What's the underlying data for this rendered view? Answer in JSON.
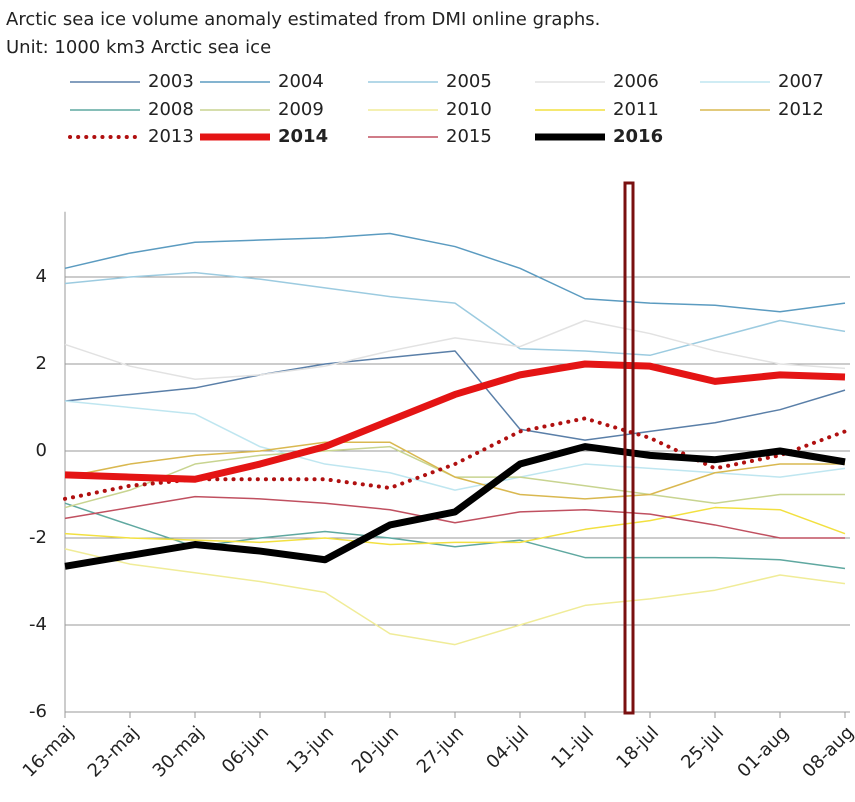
{
  "chart_data": {
    "type": "line",
    "title": "Arctic sea ice volume anomaly estimated from DMI online graphs.",
    "subtitle": "Unit: 1000 km3 Arctic sea ice",
    "categories": [
      "16-maj",
      "23-maj",
      "30-maj",
      "06-jun",
      "13-jun",
      "20-jun",
      "27-jun",
      "04-jul",
      "11-jul",
      "18-jul",
      "25-jul",
      "01-aug",
      "08-aug"
    ],
    "ylim": [
      -6,
      5.5
    ],
    "yticks": [
      -6,
      -4,
      -2,
      0,
      2,
      4
    ],
    "grid": true,
    "series": [
      {
        "name": "2003",
        "color": "#5a7fa8",
        "width": 1.5,
        "values": [
          1.15,
          1.3,
          1.45,
          1.75,
          2.0,
          2.15,
          2.3,
          0.5,
          0.25,
          0.45,
          0.65,
          0.95,
          1.4
        ]
      },
      {
        "name": "2004",
        "color": "#5b9bc0",
        "width": 1.5,
        "values": [
          4.2,
          4.55,
          4.8,
          4.85,
          4.9,
          5.0,
          4.7,
          4.2,
          3.5,
          3.4,
          3.35,
          3.2,
          3.4
        ]
      },
      {
        "name": "2005",
        "color": "#9ccbe0",
        "width": 1.5,
        "values": [
          3.85,
          4.0,
          4.1,
          3.95,
          3.75,
          3.55,
          3.4,
          2.35,
          2.3,
          2.2,
          2.6,
          3.0,
          2.75
        ]
      },
      {
        "name": "2006",
        "color": "#e2e2e2",
        "width": 1.5,
        "values": [
          2.45,
          1.95,
          1.65,
          1.75,
          1.95,
          2.3,
          2.6,
          2.4,
          3.0,
          2.7,
          2.3,
          2.0,
          1.9
        ]
      },
      {
        "name": "2007",
        "color": "#bfe6f0",
        "width": 1.5,
        "values": [
          1.15,
          1.0,
          0.85,
          0.1,
          -0.3,
          -0.5,
          -0.9,
          -0.6,
          -0.3,
          -0.4,
          -0.5,
          -0.6,
          -0.4
        ]
      },
      {
        "name": "2008",
        "color": "#5fa8a0",
        "width": 1.5,
        "values": [
          -1.2,
          -1.7,
          -2.2,
          -2.0,
          -1.85,
          -2.0,
          -2.2,
          -2.05,
          -2.45,
          -2.45,
          -2.45,
          -2.5,
          -2.7
        ]
      },
      {
        "name": "2009",
        "color": "#c8d490",
        "width": 1.5,
        "values": [
          -1.3,
          -0.9,
          -0.3,
          -0.1,
          0.0,
          0.1,
          -0.6,
          -0.6,
          -0.8,
          -1.0,
          -1.2,
          -1.0,
          -1.0
        ]
      },
      {
        "name": "2010",
        "color": "#f0ec98",
        "width": 1.5,
        "values": [
          -2.25,
          -2.6,
          -2.8,
          -3.0,
          -3.25,
          -4.2,
          -4.45,
          -4.0,
          -3.55,
          -3.4,
          -3.2,
          -2.85,
          -3.05
        ]
      },
      {
        "name": "2011",
        "color": "#f2e040",
        "width": 1.5,
        "values": [
          -1.9,
          -2.0,
          -2.05,
          -2.1,
          -2.0,
          -2.15,
          -2.1,
          -2.1,
          -1.8,
          -1.6,
          -1.3,
          -1.35,
          -1.9
        ]
      },
      {
        "name": "2012",
        "color": "#d9b850",
        "width": 1.5,
        "values": [
          -0.6,
          -0.3,
          -0.1,
          0.0,
          0.2,
          0.2,
          -0.6,
          -1.0,
          -1.1,
          -1.0,
          -0.5,
          -0.3,
          -0.3
        ]
      },
      {
        "name": "2013",
        "color": "#b01010",
        "width": 4,
        "dash": "dotted",
        "values": [
          -1.1,
          -0.8,
          -0.65,
          -0.65,
          -0.65,
          -0.85,
          -0.3,
          0.45,
          0.75,
          0.3,
          -0.4,
          -0.1,
          0.45
        ]
      },
      {
        "name": "2014",
        "color": "#e41414",
        "width": 7,
        "values": [
          -0.55,
          -0.6,
          -0.65,
          -0.3,
          0.1,
          0.7,
          1.3,
          1.75,
          2.0,
          1.95,
          1.6,
          1.75,
          1.7
        ]
      },
      {
        "name": "2015",
        "color": "#c05060",
        "width": 1.5,
        "values": [
          -1.55,
          -1.3,
          -1.05,
          -1.1,
          -1.2,
          -1.35,
          -1.65,
          -1.4,
          -1.35,
          -1.45,
          -1.7,
          -2.0,
          -2.0
        ]
      },
      {
        "name": "2016",
        "color": "#000000",
        "width": 7,
        "values": [
          -2.65,
          -2.4,
          -2.15,
          -2.3,
          -2.5,
          -1.7,
          -1.4,
          -0.3,
          0.1,
          -0.1,
          -0.2,
          0.0,
          -0.25
        ]
      }
    ]
  }
}
